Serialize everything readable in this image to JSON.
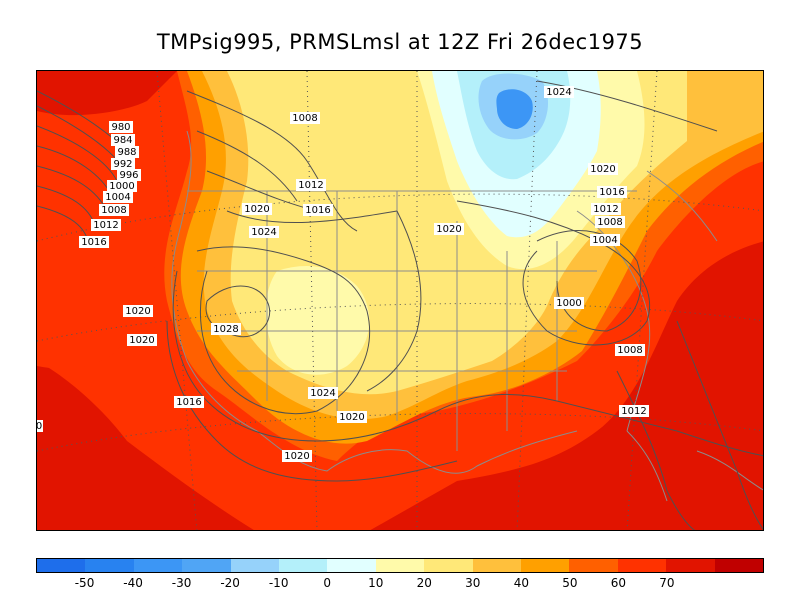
{
  "title": "TMPsig995, PRMSLmsl at 12Z Fri 26dec1975",
  "colors": {
    "c_lt_neg50": "#1e6eeb",
    "c_neg50": "#2882f0",
    "c_neg40": "#3c96f5",
    "c_neg30": "#50a5f5",
    "c_neg20": "#96d2fa",
    "c_neg10": "#b4f0fa",
    "c_0": "#e1ffff",
    "c_10": "#fffaaa",
    "c_20": "#ffe878",
    "c_30": "#ffc03c",
    "c_40": "#ffa000",
    "c_50": "#ff6000",
    "c_60": "#ff3200",
    "c_70": "#e11400",
    "c_gt70": "#c00000"
  },
  "colorbar": {
    "swatches": [
      "#1e6eeb",
      "#2882f0",
      "#3c96f5",
      "#50a5f5",
      "#96d2fa",
      "#b4f0fa",
      "#e1ffff",
      "#fffaaa",
      "#ffe878",
      "#ffc03c",
      "#ffa000",
      "#ff6000",
      "#ff3200",
      "#e11400",
      "#c00000"
    ],
    "tick_labels": [
      "-50",
      "-40",
      "-30",
      "-20",
      "-10",
      "0",
      "10",
      "20",
      "30",
      "40",
      "50",
      "60",
      "70"
    ]
  },
  "isobar_labels": {
    "l980": "980",
    "l984": "984",
    "l988": "988",
    "l992": "992",
    "l996": "996",
    "l1000w": "1000",
    "l1004w": "1004",
    "l1008w": "1008",
    "l1012w": "1012",
    "l1016w": "1016",
    "l1008n": "1008",
    "l1012n": "1012",
    "l1016n": "1016",
    "l1020n": "1020",
    "l1024n": "1024",
    "l1024ne": "1024",
    "l1020ne": "1020",
    "l1016e": "1016",
    "l1012e": "1012",
    "l1008e": "1008",
    "l1004e": "1004",
    "l1000e": "1000",
    "l1008se": "1008",
    "l1012se": "1012",
    "l1020c": "1020",
    "l1028": "1028",
    "l1024s": "1024",
    "l1020s": "1020",
    "l1020s2": "1020",
    "l1020w1": "1020",
    "l1020w2": "1020",
    "l1016sw": "1016",
    "l1016edge": "0"
  }
}
